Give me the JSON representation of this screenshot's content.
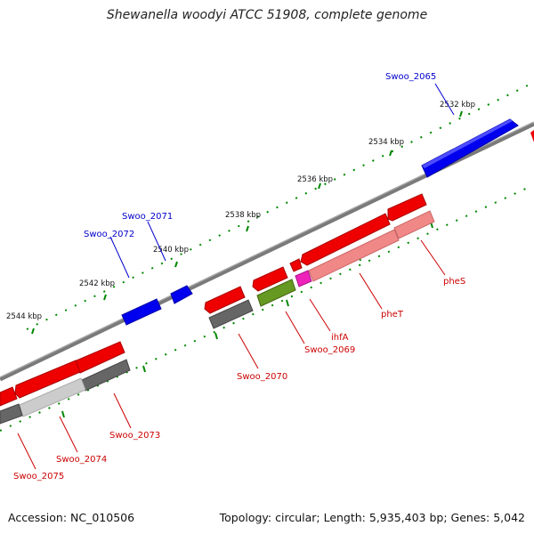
{
  "title": "Shewanella woodyi ATCC 51908, complete genome",
  "footer": {
    "accession": "Accession: NC_010506",
    "summary": "Topology: circular; Length: 5,935,403 bp; Genes: 5,042"
  },
  "colors": {
    "forward_gene": "#0000ee",
    "reverse_gene": "#ee0000",
    "label_forward": "#0000cc",
    "label_reverse": "#cc0000",
    "backbone": "#808080",
    "tick": "#007700",
    "rna_gene": "#ee22bb",
    "pseudogene_green": "#669922",
    "gray_gene": "#666666"
  },
  "scale_labels": [
    "2532 kbp",
    "2534 kbp",
    "2536 kbp",
    "2538 kbp",
    "2540 kbp",
    "2542 kbp",
    "2544 kbp"
  ],
  "forward_labels": [
    "Swoo_2065",
    "Swoo_2071",
    "Swoo_2072"
  ],
  "reverse_labels": [
    "pheS",
    "pheT",
    "ihfA",
    "Swoo_2069",
    "Swoo_2070",
    "Swoo_2073",
    "Swoo_2074",
    "Swoo_2075"
  ]
}
